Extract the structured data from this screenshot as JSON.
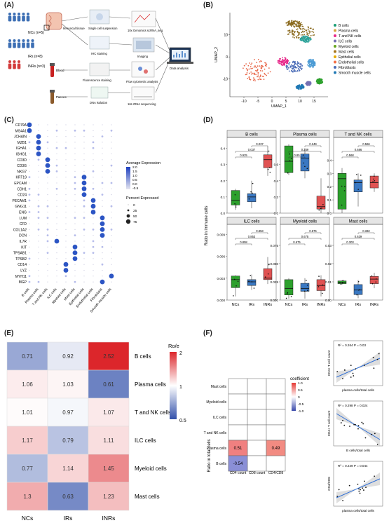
{
  "figure": {
    "panel_labels": [
      "(A)",
      "(B)",
      "(C)",
      "(D)",
      "(E)",
      "(F)"
    ]
  },
  "panel_a": {
    "groups": [
      {
        "label": "NCs (n=5)",
        "color": "#3d6fb4"
      },
      {
        "label": "IRs (n=8)",
        "color": "#3d6fb4"
      },
      {
        "label": "INRs (n=3)",
        "color": "#d33a3a"
      }
    ],
    "samples": [
      "Ileocecal tissue",
      "Blood",
      "Faeces"
    ],
    "steps": [
      "Single cell suspension",
      "10x Genomics scRNA_seq",
      "IHC staining",
      "Imaging",
      "Fluorescence staining",
      "Flow cytometric analysis",
      "DNA isolation",
      "16s rRNA sequencing",
      "Data analysis"
    ]
  },
  "panel_b": {
    "xlabel": "UMAP_1",
    "ylabel": "UMAP_2",
    "xticks": [
      "-10",
      "-5",
      "0",
      "5",
      "10",
      "15"
    ],
    "yticks": [
      "-10",
      "0",
      "10"
    ],
    "legend": [
      {
        "label": "B cells",
        "color": "#1b9e77"
      },
      {
        "label": "Plasma cells",
        "color": "#d9a43a"
      },
      {
        "label": "T and NK cells",
        "color": "#e7298a"
      },
      {
        "label": "ILC cells",
        "color": "#7570b3"
      },
      {
        "label": "Myeloid cells",
        "color": "#66a61e"
      },
      {
        "label": "Mast cells",
        "color": "#a6761d"
      },
      {
        "label": "Epithelial cells",
        "color": "#e6ab02"
      },
      {
        "label": "Endothelial cells",
        "color": "#f46d43"
      },
      {
        "label": "Fibroblasts",
        "color": "#4b6cb7"
      },
      {
        "label": "Smooth muscle cells",
        "color": "#1f78b4"
      }
    ],
    "clusters": [
      {
        "cx": 10.5,
        "cy": 11,
        "color": "#8b6b1f"
      },
      {
        "cx": 8,
        "cy": 15,
        "color": "#8b6b1f"
      },
      {
        "cx": 12,
        "cy": 8,
        "color": "#2aa198"
      },
      {
        "cx": -5.5,
        "cy": -6,
        "color": "#e8684a"
      },
      {
        "cx": 8,
        "cy": -4.5,
        "color": "#4b6cb7"
      },
      {
        "cx": 4,
        "cy": -2,
        "color": "#e7298a"
      },
      {
        "cx": 14,
        "cy": -3,
        "color": "#4a9ad4"
      },
      {
        "cx": 10,
        "cy": -13.5,
        "color": "#1f78b4"
      },
      {
        "cx": 17,
        "cy": -11,
        "color": "#2ca02c"
      },
      {
        "cx": 13,
        "cy": -12,
        "color": "#7570b3"
      }
    ]
  },
  "panel_c": {
    "genes": [
      "CD79A",
      "MS4A1",
      "JCHAIN",
      "MZB1",
      "IGHA1",
      "IGHG1",
      "CD3D",
      "CD3G",
      "NKG7",
      "KRT19",
      "EPCAM",
      "CDH1",
      "CD24",
      "PECAM1",
      "GNG11",
      "ENG",
      "LUM",
      "CFD",
      "COL1A2",
      "DCN",
      "IL7R",
      "KIT",
      "TPSAB1",
      "TPSB2",
      "CD14",
      "LYZ",
      "MYH11",
      "MGP"
    ],
    "cell_types": [
      "B cells",
      "Plasma cells",
      "T and NK cells",
      "ILC cells",
      "Myeloid cells",
      "Mast cells",
      "Epithelial cells",
      "Endothelial cells",
      "Fibroblasts",
      "Smooth muscle cells"
    ],
    "legend_expr_title": "Average Expression",
    "legend_expr_ticks": [
      "2.0",
      "1.5",
      "1.0",
      "0.5",
      "0.0",
      "-0.5"
    ],
    "legend_pct_title": "Percent Expressed",
    "legend_pct_ticks": [
      "0",
      "25",
      "50",
      "75"
    ]
  },
  "panel_d": {
    "ylabel": "Ratio in immune cells",
    "groups": [
      "NCs",
      "IRs",
      "INRs"
    ],
    "colors": [
      "#2ca02c",
      "#3a78c2",
      "#e05252"
    ],
    "subplots": [
      {
        "title": "B cells",
        "ylim": [
          0,
          0.45
        ],
        "yticks": [
          "0.0",
          "0.1",
          "0.2",
          "0.3",
          "0.4"
        ],
        "pvals": [
          "0.925",
          "0.037",
          "0.037"
        ],
        "boxes": [
          [
            0.02,
            0.05,
            0.08,
            0.14,
            0.15
          ],
          [
            0.03,
            0.07,
            0.1,
            0.12,
            0.2
          ],
          [
            0.23,
            0.28,
            0.33,
            0.36,
            0.41
          ]
        ]
      },
      {
        "title": "Plasma cells",
        "ylim": [
          0,
          0.9
        ],
        "yticks": [
          "0.0",
          "0.2",
          "0.4",
          "0.6"
        ],
        "pvals": [
          "0.85",
          "0.249",
          "0.249"
        ],
        "boxes": [
          [
            0.47,
            0.5,
            0.64,
            0.83,
            0.85
          ],
          [
            0.43,
            0.52,
            0.68,
            0.73,
            0.8
          ],
          [
            0.0,
            0.05,
            0.08,
            0.21,
            0.43
          ]
        ]
      },
      {
        "title": "T and NK cells",
        "ylim": [
          0,
          0.55
        ],
        "yticks": [
          "0.0",
          "0.1",
          "0.2",
          "0.3",
          "0.4"
        ],
        "pvals": [
          "0.568",
          "0.686",
          "0.566"
        ],
        "boxes": [
          [
            0.0,
            0.03,
            0.26,
            0.3,
            0.34
          ],
          [
            0.05,
            0.16,
            0.23,
            0.25,
            0.3
          ],
          [
            0.16,
            0.19,
            0.23,
            0.28,
            0.3
          ]
        ]
      },
      {
        "title": "ILC cells",
        "ylim": [
          0,
          0.01
        ],
        "yticks": [
          "0.000",
          "0.003",
          "0.006",
          "0.009"
        ],
        "pvals": [
          "0.858",
          "0.853",
          "0.853"
        ],
        "boxes": [
          [
            0.0005,
            0.0017,
            0.0028,
            0.0033,
            0.0034
          ],
          [
            0.0014,
            0.002,
            0.0025,
            0.0028,
            0.0035
          ],
          [
            0.0022,
            0.0028,
            0.003,
            0.0043,
            0.0059
          ]
        ]
      },
      {
        "title": "Myeloid cells",
        "ylim": [
          0,
          0.1
        ],
        "yticks": [
          "0.000",
          "0.025",
          "0.050",
          "0.075"
        ],
        "pvals": [
          "0.675",
          "0.675",
          "0.675"
        ],
        "boxes": [
          [
            0.002,
            0.007,
            0.016,
            0.028,
            0.03
          ],
          [
            0.002,
            0.012,
            0.016,
            0.023,
            0.03
          ],
          [
            0.005,
            0.013,
            0.02,
            0.028,
            0.034
          ]
        ]
      },
      {
        "title": "Mast cells",
        "ylim": [
          0,
          0.04
        ],
        "yticks": [
          "0.00",
          "0.01",
          "0.02",
          "0.03"
        ],
        "pvals": [
          "0.303",
          "0.639",
          "0.332"
        ],
        "boxes": [
          [
            0.0085,
            0.009,
            0.0098,
            0.0105,
            0.0108
          ],
          [
            0.001,
            0.003,
            0.0055,
            0.0085,
            0.011
          ],
          [
            0.0065,
            0.009,
            0.0115,
            0.013,
            0.015
          ]
        ]
      }
    ]
  },
  "panel_e": {
    "rows": [
      "B cells",
      "Plasma cells",
      "T and NK cells",
      "ILC cells",
      "Myeloid cells",
      "Mast cells"
    ],
    "cols": [
      "NCs",
      "IRs",
      "INRs"
    ],
    "values": [
      [
        0.71,
        0.92,
        2.52
      ],
      [
        1.06,
        1.03,
        0.61
      ],
      [
        1.01,
        0.97,
        1.07
      ],
      [
        1.17,
        0.79,
        1.11
      ],
      [
        0.77,
        1.14,
        1.45
      ],
      [
        1.3,
        0.63,
        1.23
      ]
    ],
    "legend_title": "Ro/e",
    "legend_ticks": [
      "2",
      "1",
      "0.5"
    ]
  },
  "panel_f": {
    "ylabel": "Ratio in total cells",
    "rows": [
      "Mast cells",
      "Myeloid cells",
      "ILC cells",
      "T and NK cells",
      "Plasma cells",
      "B cells"
    ],
    "cols": [
      "CD4 count",
      "CD8 count",
      "CD4/CD8"
    ],
    "cells": [
      {
        "row": 4,
        "col": 0,
        "value": "0.51",
        "color": "#f08080"
      },
      {
        "row": 4,
        "col": 2,
        "value": "0.49",
        "color": "#f28b82"
      },
      {
        "row": 5,
        "col": 0,
        "value": "-0.54",
        "color": "#8a8fd6"
      }
    ],
    "legend_title": "coefficient",
    "legend_ticks": [
      "1.0",
      "0.5",
      "0",
      "-0.5",
      "-1.0"
    ],
    "scatters": [
      {
        "stat": "R² = 0.264  P = 0.03",
        "ylabel": "CD4+ T cell count",
        "xlabel": "plasma cells/total cells",
        "slope": 1
      },
      {
        "stat": "R² = 0.298  P = 0.024",
        "ylabel": "CD4+ T cell count",
        "xlabel": "B cells/total cells",
        "slope": -1
      },
      {
        "stat": "R² = 0.249  P = 0.044",
        "ylabel": "CD4/CD8",
        "xlabel": "plasma cells/total cells",
        "slope": 1
      }
    ]
  }
}
